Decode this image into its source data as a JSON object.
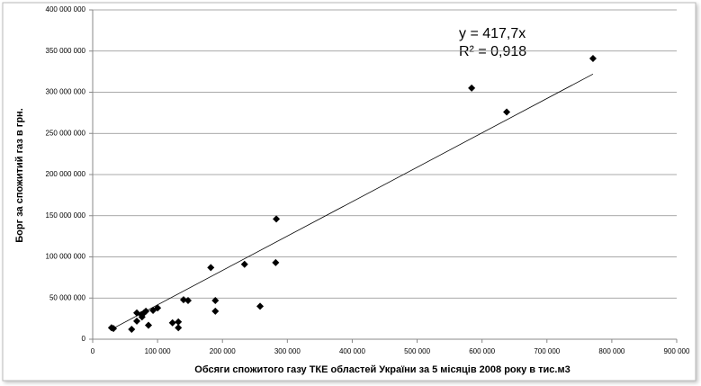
{
  "chart_data": {
    "type": "scatter",
    "x_label": "Обсяги спожитого газу ТКЕ областей України за 5 місяців 2008 року в тис.м3",
    "y_label": "Борг за спожитий газ в грн.",
    "x": [
      29000,
      32000,
      60000,
      68000,
      68000,
      75000,
      79000,
      76000,
      82000,
      86000,
      93000,
      100000,
      123000,
      132000,
      132000,
      140000,
      147000,
      182000,
      189000,
      189000,
      234000,
      258000,
      282000,
      283000,
      584000,
      638000,
      771000
    ],
    "values": [
      14000000,
      13000000,
      12000000,
      22000000,
      32000000,
      30000000,
      32000000,
      27000000,
      34000000,
      17000000,
      35000000,
      38000000,
      20000000,
      21000000,
      14000000,
      48000000,
      47000000,
      87000000,
      34000000,
      47000000,
      91000000,
      40000000,
      93000000,
      146000000,
      305000000,
      276000000,
      341000000
    ],
    "color": "#000000",
    "trendline": {
      "slope": 417.7,
      "equation": "y = 417,7x",
      "r_squared": "R² = 0,918"
    },
    "xlim": [
      0,
      900000
    ],
    "ylim": [
      0,
      400000000
    ],
    "xticks": [
      0,
      {
        "value": 100000,
        "label": "100 000"
      },
      {
        "value": 200000,
        "label": "200 000"
      },
      {
        "value": 300000,
        "label": "300 000"
      },
      {
        "value": 400000,
        "label": "400 000"
      },
      {
        "value": 500000,
        "label": "500 000"
      },
      {
        "value": 600000,
        "label": "600 000"
      },
      {
        "value": 700000,
        "label": "700 000"
      },
      {
        "value": 800000,
        "label": "800 000"
      },
      {
        "value": 900000,
        "label": "900 000"
      }
    ],
    "yticks": [
      0,
      {
        "value": 50000000,
        "label": "50 000 000"
      },
      {
        "value": 100000000,
        "label": "100 000 000"
      },
      {
        "value": 150000000,
        "label": "150 000 000"
      },
      {
        "value": 200000000,
        "label": "200 000 000"
      },
      {
        "value": 250000000,
        "label": "250 000 000"
      },
      {
        "value": 300000000,
        "label": "300 000 000"
      },
      {
        "value": 350000000,
        "label": "350 000 000"
      },
      {
        "value": 400000000,
        "label": "400 000 000"
      }
    ],
    "grid": true
  }
}
